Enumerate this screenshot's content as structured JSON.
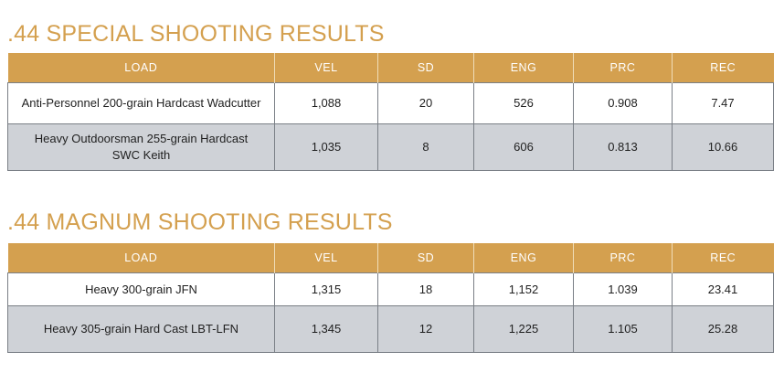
{
  "sections": [
    {
      "title": ".44 SPECIAL SHOOTING RESULTS",
      "headers": [
        "LOAD",
        "VEL",
        "SD",
        "ENG",
        "PRC",
        "REC"
      ],
      "rows": [
        [
          "Anti-Personnel 200-grain Hardcast Wadcutter",
          "1,088",
          "20",
          "526",
          "0.908",
          "7.47"
        ],
        [
          "Heavy Outdoorsman 255-grain Hardcast SWC Keith",
          "1,035",
          "8",
          "606",
          "0.813",
          "10.66"
        ]
      ]
    },
    {
      "title": ".44 MAGNUM SHOOTING RESULTS",
      "headers": [
        "LOAD",
        "VEL",
        "SD",
        "ENG",
        "PRC",
        "REC"
      ],
      "rows": [
        [
          "Heavy 300-grain JFN",
          "1,315",
          "18",
          "1,152",
          "1.039",
          "23.41"
        ],
        [
          "Heavy 305-grain Hard Cast LBT-LFN",
          "1,345",
          "12",
          "1,225",
          "1.105",
          "25.28"
        ]
      ]
    }
  ],
  "colors": {
    "accent": "#d4a04f",
    "alt_row": "#cfd2d7",
    "border": "#7a7f86"
  }
}
